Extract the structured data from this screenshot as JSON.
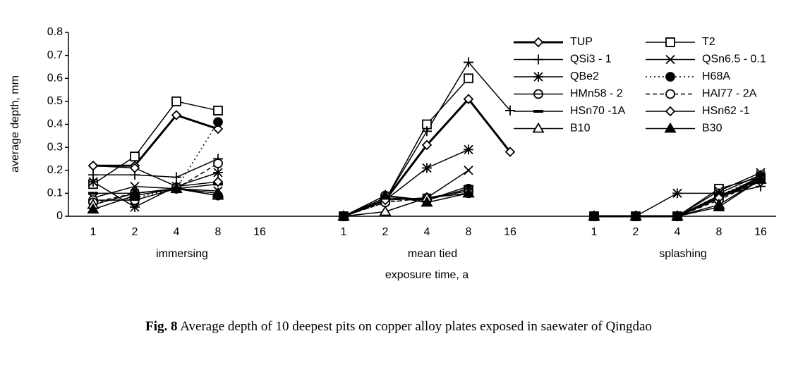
{
  "chart_data": {
    "type": "line",
    "ylabel": "average depth, mm",
    "xlabel": "exposure time, a",
    "ylim": [
      0,
      0.8
    ],
    "yticks": [
      0,
      0.1,
      0.2,
      0.3,
      0.4,
      0.5,
      0.6,
      0.7,
      0.8
    ],
    "groups": [
      "immersing",
      "mean tied",
      "splashing"
    ],
    "categories": [
      [
        "1",
        "2",
        "4",
        "8",
        "16"
      ],
      [
        "1",
        "2",
        "4",
        "8",
        "16"
      ],
      [
        "1",
        "2",
        "4",
        "8",
        "16"
      ]
    ],
    "legend": "upper right",
    "series": [
      {
        "name": "TUP",
        "color": "#000000",
        "marker": "diamond",
        "line": "solid",
        "width": 3,
        "values": [
          [
            0.22,
            0.22,
            0.44,
            0.38,
            null
          ],
          [
            0,
            0.07,
            0.31,
            0.51,
            0.28
          ],
          [
            0,
            0,
            0,
            0.08,
            0.17
          ]
        ]
      },
      {
        "name": "T2",
        "color": "#000000",
        "marker": "square",
        "line": "solid",
        "width": 1.5,
        "values": [
          [
            0.14,
            0.26,
            0.5,
            0.46,
            null
          ],
          [
            0,
            0.07,
            0.4,
            0.6,
            null
          ],
          [
            0,
            0,
            0,
            0.12,
            0.17
          ]
        ]
      },
      {
        "name": "QSi3 - 1",
        "color": "#000000",
        "marker": "plus",
        "line": "solid",
        "width": 1.5,
        "values": [
          [
            0.18,
            0.18,
            0.17,
            0.25,
            null
          ],
          [
            0,
            0.07,
            0.37,
            0.67,
            0.46
          ],
          [
            0,
            0,
            0,
            0.09,
            0.13
          ]
        ]
      },
      {
        "name": "QSn6.5 - 0.1",
        "color": "#000000",
        "marker": "cross",
        "line": "solid",
        "width": 1.5,
        "values": [
          [
            0.08,
            0.13,
            0.12,
            0.11,
            null
          ],
          [
            0,
            0.07,
            0.08,
            0.2,
            null
          ],
          [
            0,
            0,
            0,
            0.11,
            0.19
          ]
        ]
      },
      {
        "name": "QBe2",
        "color": "#000000",
        "marker": "asterisk",
        "line": "solid",
        "width": 1.5,
        "values": [
          [
            0.15,
            0.04,
            0.13,
            0.19,
            null
          ],
          [
            0,
            0.07,
            0.21,
            0.29,
            null
          ],
          [
            0,
            0,
            0.1,
            0.1,
            0.18
          ]
        ]
      },
      {
        "name": "H68A",
        "color": "#000000",
        "marker": "circle-filled",
        "line": "dotted",
        "width": 1.5,
        "values": [
          [
            0.06,
            0.08,
            0.12,
            0.41,
            null
          ],
          [
            0,
            0.06,
            0.08,
            0.11,
            null
          ],
          [
            0,
            0,
            0,
            0.09,
            0.17
          ]
        ]
      },
      {
        "name": "HMn58 - 2",
        "color": "#000000",
        "marker": "circle-bar",
        "line": "solid",
        "width": 1.5,
        "values": [
          [
            0.07,
            0.07,
            0.12,
            0.09,
            null
          ],
          [
            0,
            0.09,
            0.07,
            0.12,
            null
          ],
          [
            0,
            0,
            0,
            0.08,
            0.16
          ]
        ]
      },
      {
        "name": "HAl77 - 2A",
        "color": "#000000",
        "marker": "circle-open",
        "line": "dashed",
        "width": 1.5,
        "values": [
          [
            0.06,
            0.1,
            0.12,
            0.23,
            null
          ],
          [
            0,
            0.06,
            0.08,
            0.1,
            null
          ],
          [
            0,
            0,
            0,
            0.07,
            0.16
          ]
        ]
      },
      {
        "name": "HSn70 -1A",
        "color": "#000000",
        "marker": "dash",
        "line": "solid",
        "width": 1.5,
        "values": [
          [
            0.1,
            0.1,
            0.12,
            0.14,
            null
          ],
          [
            0,
            0.08,
            0.07,
            0.13,
            null
          ],
          [
            0,
            0,
            0,
            0.09,
            0.16
          ]
        ]
      },
      {
        "name": "HSn62 -1",
        "color": "#000000",
        "marker": "diamond",
        "line": "solid",
        "width": 1.5,
        "values": [
          [
            0.22,
            0.21,
            0.13,
            0.15,
            null
          ],
          [
            0,
            0.07,
            0.08,
            0.11,
            null
          ],
          [
            0,
            0,
            0,
            0.08,
            0.15
          ]
        ]
      },
      {
        "name": "B10",
        "color": "#000000",
        "marker": "triangle-open",
        "line": "solid",
        "width": 1.5,
        "values": [
          [
            0.05,
            0.1,
            0.12,
            0.1,
            null
          ],
          [
            0,
            0.02,
            0.08,
            0.1,
            null
          ],
          [
            0,
            0,
            0,
            0.05,
            0.16
          ]
        ]
      },
      {
        "name": "B30",
        "color": "#000000",
        "marker": "triangle-filled",
        "line": "solid",
        "width": 1.5,
        "values": [
          [
            0.03,
            0.09,
            0.12,
            0.09,
            null
          ],
          [
            0,
            0.09,
            0.06,
            0.1,
            null
          ],
          [
            0,
            0,
            0,
            0.04,
            0.16
          ]
        ]
      }
    ],
    "caption": {
      "label": "Fig. 8",
      "text": "Average depth of 10 deepest pits on copper alloy plates exposed in saewater of Qingdao"
    }
  }
}
